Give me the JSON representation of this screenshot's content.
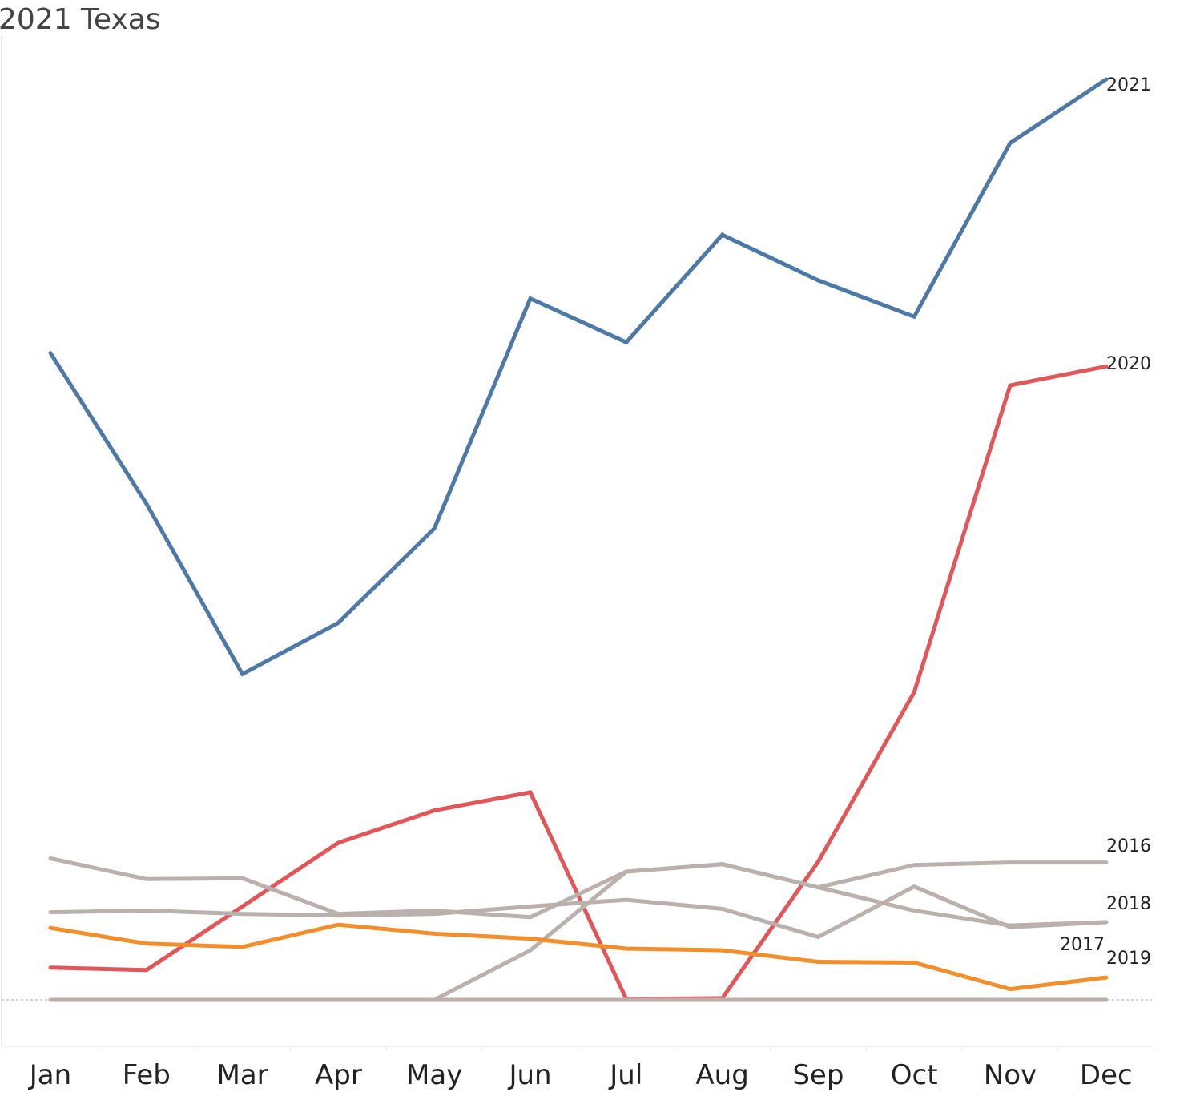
{
  "chart_data": {
    "type": "line",
    "title": "2021 Texas",
    "xlabel": "",
    "ylabel": "",
    "categories": [
      "Jan",
      "Feb",
      "Mar",
      "Apr",
      "May",
      "Jun",
      "Jul",
      "Aug",
      "Sep",
      "Oct",
      "Nov",
      "Dec"
    ],
    "ylim": [
      -52,
      1116
    ],
    "baseline": 0,
    "grid": false,
    "y_axis_labels": false,
    "series": [
      {
        "name": "2021",
        "color": "#4e79a7",
        "values": [
          782,
          600,
          394,
          456,
          570,
          848,
          795,
          925,
          870,
          826,
          1036,
          1113
        ]
      },
      {
        "name": "2020",
        "color": "#e15759",
        "values": [
          39,
          36,
          113,
          190,
          229,
          251,
          1,
          2,
          167,
          372,
          743,
          766
        ]
      },
      {
        "name": "2016",
        "color": "#bab0ac",
        "values": [
          171,
          146,
          147,
          104,
          108,
          100,
          155,
          164,
          136,
          163,
          166,
          166
        ]
      },
      {
        "name": "2018",
        "color": "#bab0ac",
        "values": [
          106,
          108,
          104,
          102,
          104,
          113,
          121,
          110,
          76,
          137,
          88,
          94
        ]
      },
      {
        "name": "2017",
        "color": "#bab0ac",
        "values": [
          0,
          0,
          0,
          0,
          0,
          60,
          155,
          164,
          136,
          108,
          90,
          94
        ]
      },
      {
        "name": "",
        "color": "#bab0ac",
        "values": [
          0,
          0,
          0,
          0,
          0,
          0,
          0,
          0,
          0,
          0,
          0,
          0
        ]
      },
      {
        "name": "2019",
        "color": "#f28e2b",
        "values": [
          87,
          68,
          64,
          91,
          80,
          74,
          62,
          60,
          46,
          45,
          13,
          27
        ]
      }
    ],
    "end_labels": [
      "2021",
      "2020",
      "2016",
      "2018",
      "2017",
      "2019"
    ]
  }
}
